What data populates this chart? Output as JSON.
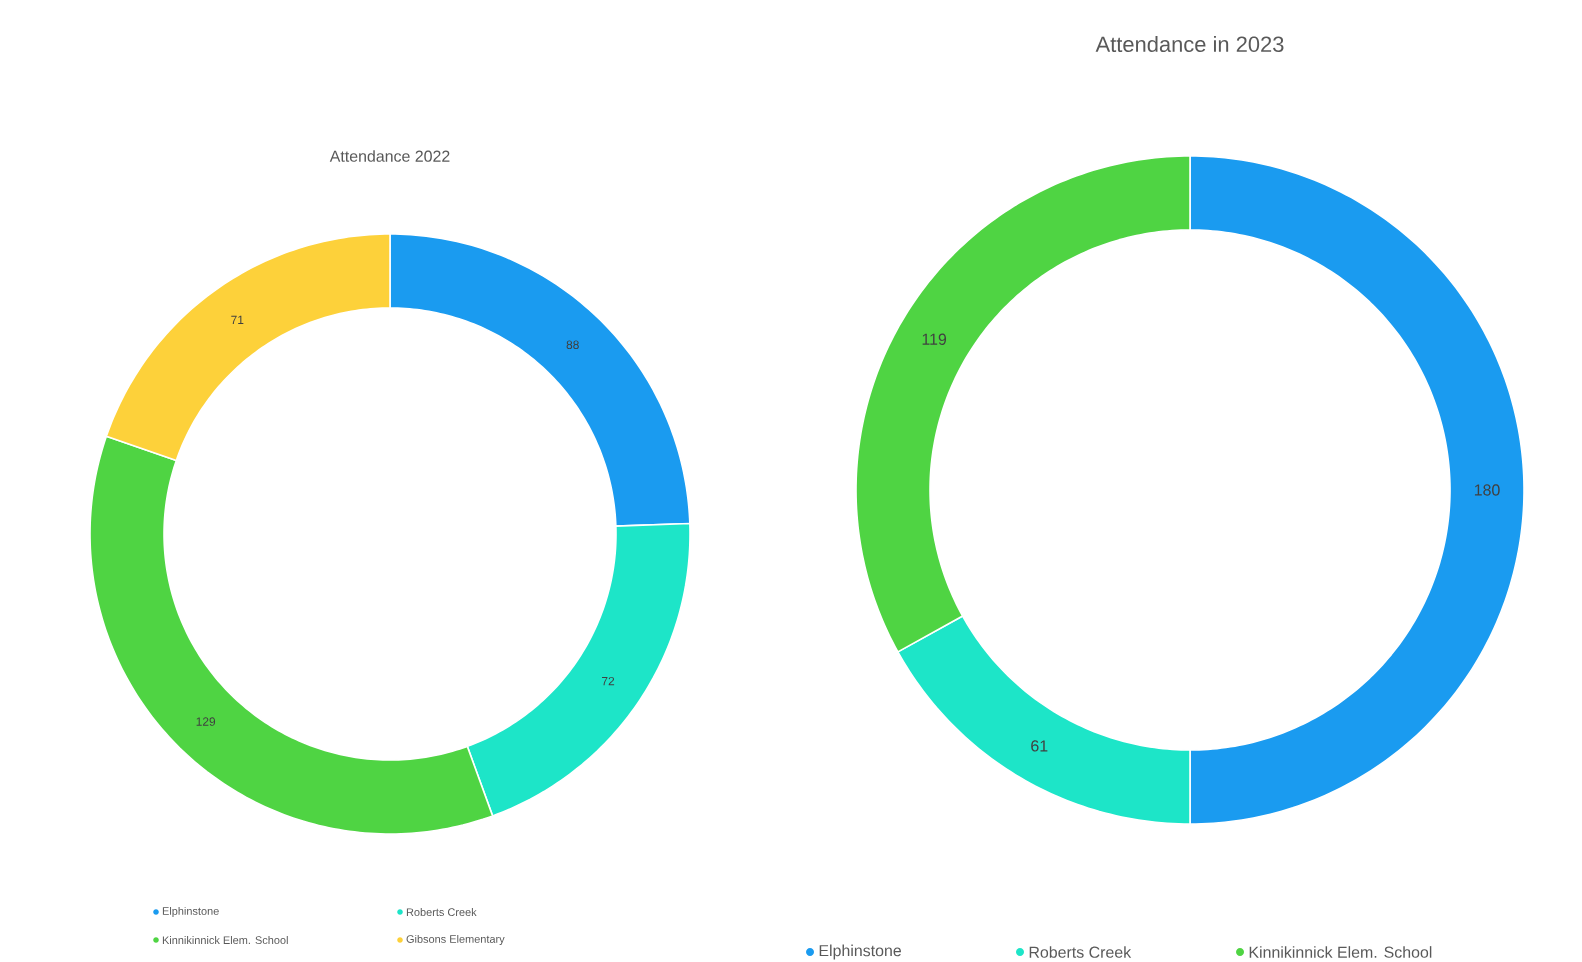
{
  "chart_data": [
    {
      "type": "donut",
      "title": "Attendance 2022",
      "categories": [
        "Elphinstone",
        "Roberts Creek",
        "Kinnikinnick Elem. School",
        "Gibsons Elementary"
      ],
      "values": [
        88,
        72,
        129,
        71
      ],
      "colors": [
        "#1a9bf0",
        "#1de5c8",
        "#4fd443",
        "#fdd13a"
      ],
      "data_labels": true,
      "legend": "bottom"
    },
    {
      "type": "donut",
      "title": "Attendance in 2023",
      "categories": [
        "Elphinstone",
        "Roberts Creek",
        "Kinnikinnick Elem. School"
      ],
      "values": [
        180,
        61,
        119
      ],
      "colors": [
        "#1a9bf0",
        "#1de5c8",
        "#4fd443"
      ],
      "data_labels": true,
      "legend": "bottom"
    }
  ]
}
